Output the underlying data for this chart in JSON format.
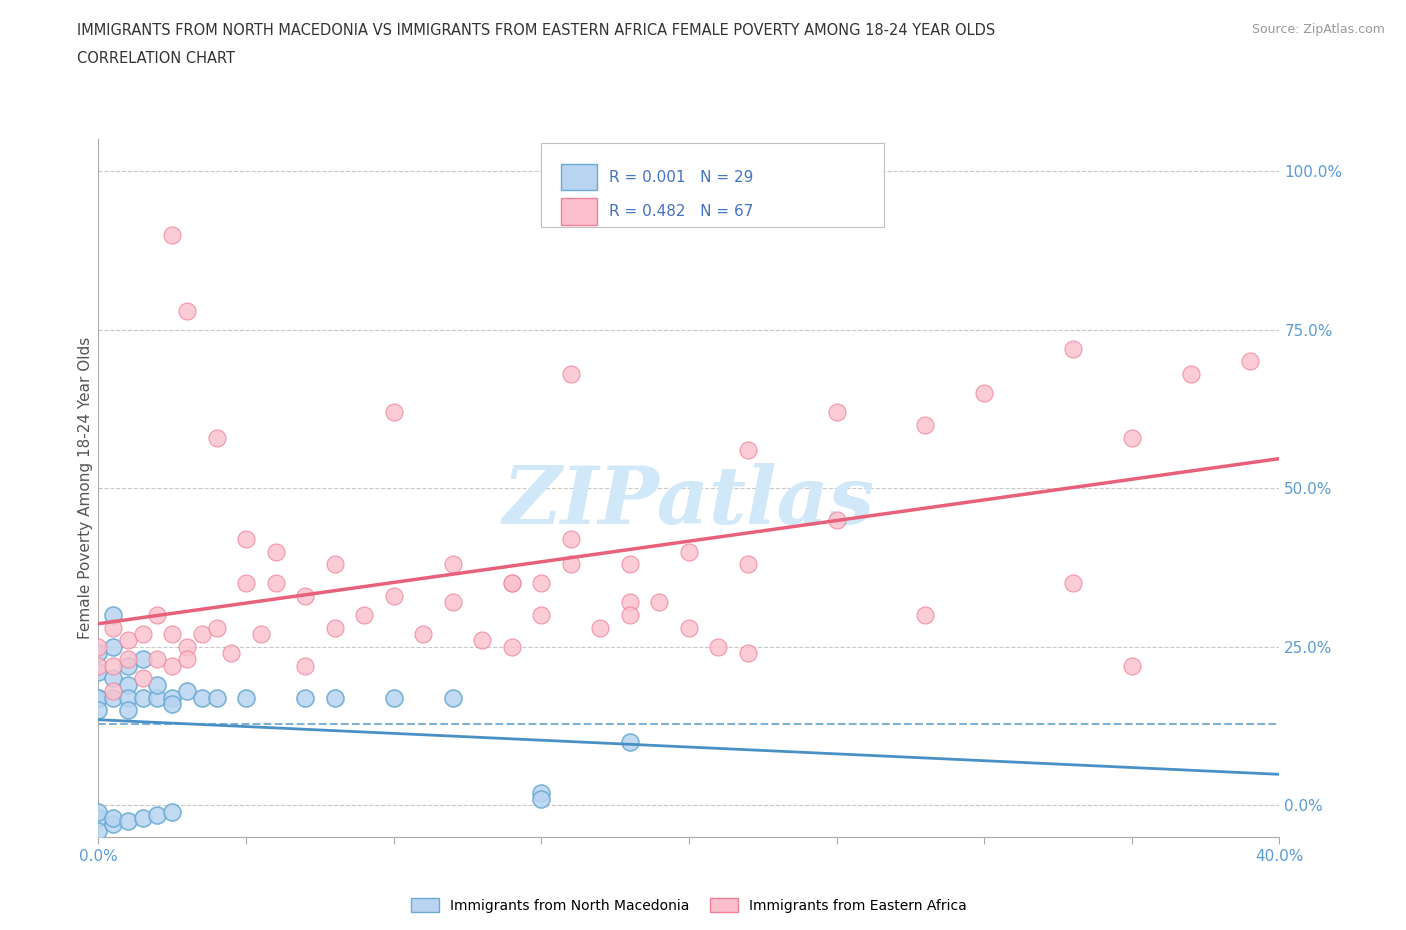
{
  "title_line1": "IMMIGRANTS FROM NORTH MACEDONIA VS IMMIGRANTS FROM EASTERN AFRICA FEMALE POVERTY AMONG 18-24 YEAR OLDS",
  "title_line2": "CORRELATION CHART",
  "source": "Source: ZipAtlas.com",
  "ylabel": "Female Poverty Among 18-24 Year Olds",
  "xlim": [
    0.0,
    0.4
  ],
  "ylim": [
    -0.05,
    1.05
  ],
  "plot_ylim": [
    -0.05,
    1.05
  ],
  "xticks": [
    0.0,
    0.05,
    0.1,
    0.15,
    0.2,
    0.25,
    0.3,
    0.35,
    0.4
  ],
  "yticks_right": [
    0.0,
    0.25,
    0.5,
    0.75,
    1.0
  ],
  "ytick_right_labels": [
    "0.0%",
    "25.0%",
    "50.0%",
    "75.0%",
    "100.0%"
  ],
  "series1_label": "Immigrants from North Macedonia",
  "series1_R": "0.001",
  "series1_N": "29",
  "series1_color": "#b8d4f0",
  "series1_edge_color": "#6aaad4",
  "series1_line_color": "#4a90c4",
  "series2_label": "Immigrants from Eastern Africa",
  "series2_R": "0.482",
  "series2_N": "67",
  "series2_color": "#fcc0cc",
  "series2_edge_color": "#f08098",
  "series2_line_color": "#e8607a",
  "watermark_color": "#d0e8f8",
  "background_color": "#ffffff",
  "grid_color": "#c8c8c8",
  "legend_text_color": "#4472c4",
  "series1_x": [
    0.0,
    0.0,
    0.0,
    0.0,
    0.0,
    0.005,
    0.005,
    0.005,
    0.005,
    0.01,
    0.01,
    0.01,
    0.01,
    0.015,
    0.015,
    0.02,
    0.02,
    0.025,
    0.025,
    0.03,
    0.035,
    0.04,
    0.05,
    0.07,
    0.08,
    0.1,
    0.12,
    0.15,
    0.18
  ],
  "series1_y": [
    0.17,
    0.21,
    0.24,
    0.17,
    0.15,
    0.25,
    0.3,
    0.2,
    0.17,
    0.22,
    0.19,
    0.17,
    0.15,
    0.23,
    0.17,
    0.17,
    0.19,
    0.17,
    0.16,
    0.18,
    0.17,
    0.17,
    0.17,
    0.17,
    0.17,
    0.17,
    0.17,
    0.02,
    0.1
  ],
  "series1_below_x": [
    0.0,
    0.0,
    0.0,
    0.005,
    0.005,
    0.01,
    0.015,
    0.02,
    0.025,
    0.15
  ],
  "series1_below_y": [
    -0.02,
    -0.04,
    -0.01,
    -0.03,
    -0.02,
    -0.025,
    -0.02,
    -0.015,
    -0.01,
    0.01
  ],
  "series2_x": [
    0.0,
    0.0,
    0.005,
    0.005,
    0.005,
    0.01,
    0.01,
    0.015,
    0.015,
    0.02,
    0.02,
    0.025,
    0.025,
    0.03,
    0.03,
    0.035,
    0.04,
    0.045,
    0.05,
    0.055,
    0.06,
    0.07,
    0.08,
    0.09,
    0.1,
    0.11,
    0.12,
    0.13,
    0.14,
    0.15,
    0.16,
    0.17,
    0.18,
    0.19,
    0.2,
    0.21,
    0.22,
    0.025,
    0.03,
    0.04,
    0.05,
    0.06,
    0.07,
    0.08,
    0.1,
    0.12,
    0.14,
    0.15,
    0.16,
    0.18,
    0.2,
    0.22,
    0.25,
    0.28,
    0.3,
    0.33,
    0.35,
    0.14,
    0.16,
    0.18,
    0.22,
    0.25,
    0.28,
    0.33,
    0.35,
    0.37,
    0.39
  ],
  "series2_y": [
    0.25,
    0.22,
    0.28,
    0.22,
    0.18,
    0.26,
    0.23,
    0.27,
    0.2,
    0.3,
    0.23,
    0.27,
    0.22,
    0.25,
    0.23,
    0.27,
    0.28,
    0.24,
    0.35,
    0.27,
    0.4,
    0.33,
    0.38,
    0.3,
    0.62,
    0.27,
    0.32,
    0.26,
    0.35,
    0.3,
    0.42,
    0.28,
    0.38,
    0.32,
    0.28,
    0.25,
    0.24,
    0.9,
    0.78,
    0.58,
    0.42,
    0.35,
    0.22,
    0.28,
    0.33,
    0.38,
    0.25,
    0.35,
    0.38,
    0.32,
    0.4,
    0.56,
    0.45,
    0.3,
    0.65,
    0.35,
    0.22,
    0.35,
    0.68,
    0.3,
    0.38,
    0.62,
    0.6,
    0.72,
    0.58,
    0.68,
    0.7
  ]
}
